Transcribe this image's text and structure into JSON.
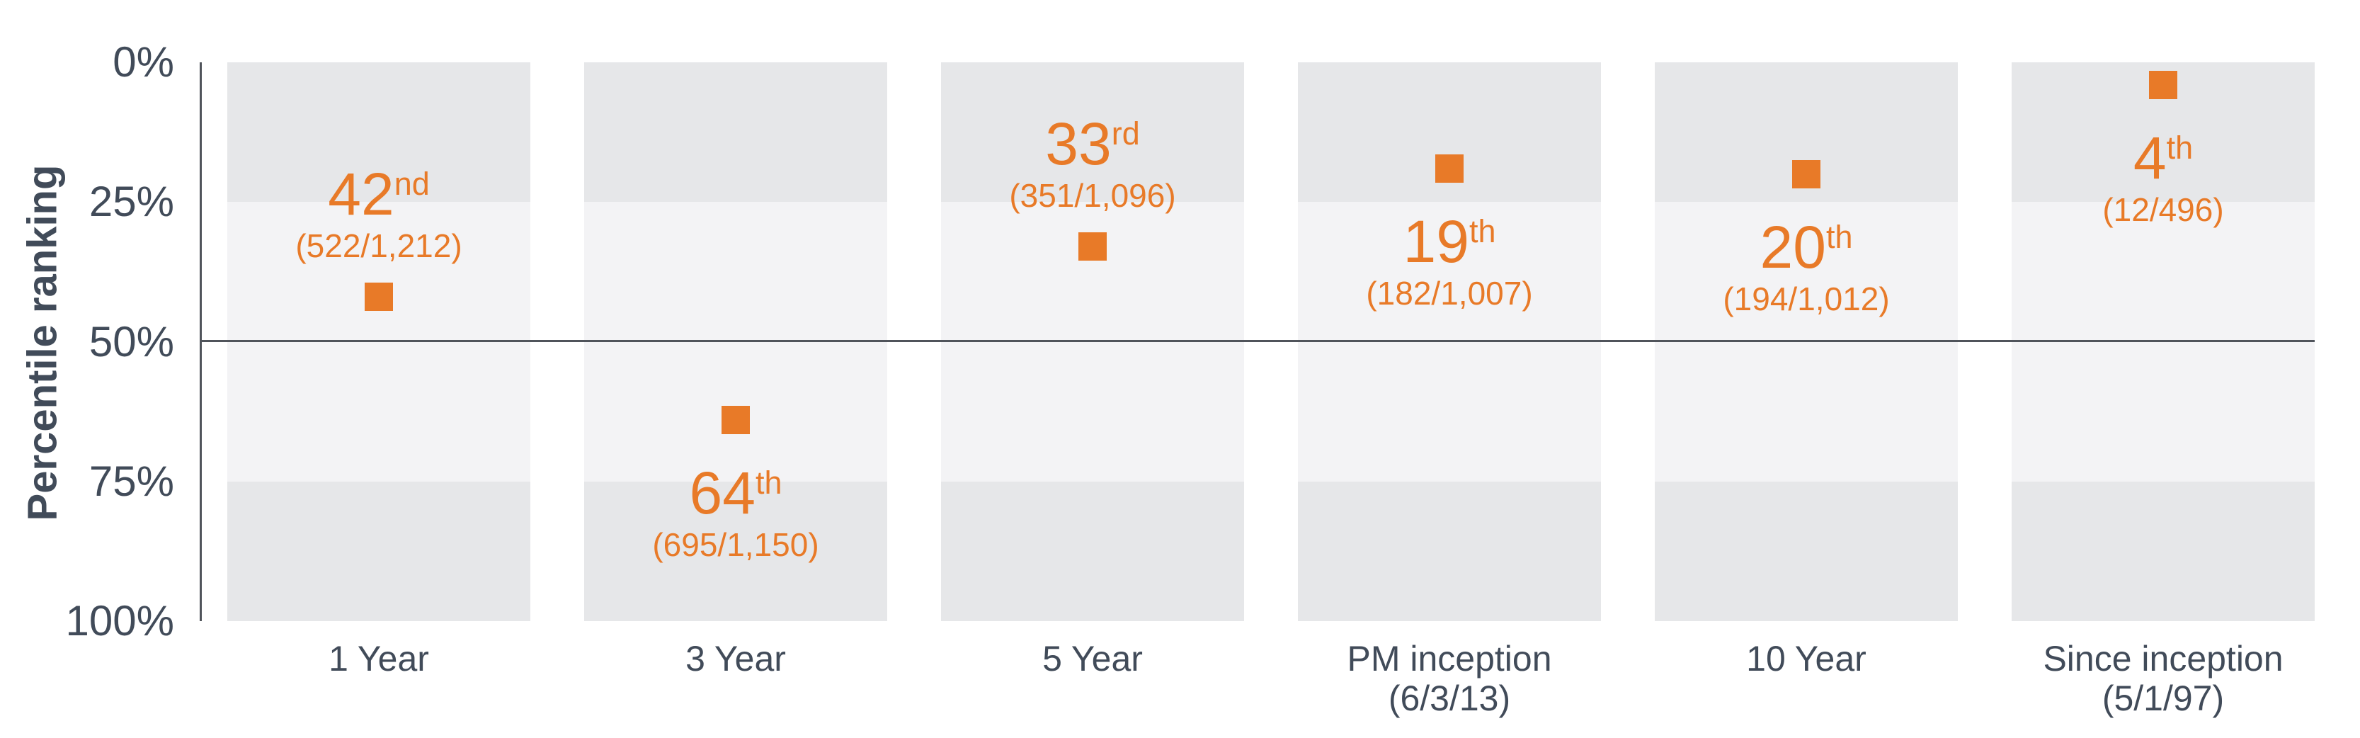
{
  "page": {
    "background": "#FFFFFF"
  },
  "colors": {
    "accent_orange": "#E87A28",
    "text_slate": "#414B59",
    "band_dark": "#E6E7E9",
    "band_light": "#F3F3F5",
    "line_dark": "#50545B"
  },
  "chart_data": {
    "type": "scatter",
    "title": "",
    "ylabel": "Percentile ranking",
    "xlabel": "",
    "y_axis": {
      "min": 0,
      "max": 100,
      "unit": "%",
      "inverted": true,
      "ticks": [
        {
          "label": "0%",
          "value": 0
        },
        {
          "label": "25%",
          "value": 25
        },
        {
          "label": "50%",
          "value": 50
        },
        {
          "label": "75%",
          "value": 75
        },
        {
          "label": "100%",
          "value": 100
        }
      ]
    },
    "reference_line_value": 50,
    "grid": "off",
    "legend": "none",
    "band_pattern": [
      "dark",
      "light",
      "light",
      "dark"
    ],
    "marker_shape": "square",
    "points": [
      {
        "category": "1 Year",
        "category_line2": "",
        "percentile": 42,
        "rank": "42",
        "ordinal": "nd",
        "detail": "(522/1,212)",
        "label_position": "above"
      },
      {
        "category": "3 Year",
        "category_line2": "",
        "percentile": 64,
        "rank": "64",
        "ordinal": "th",
        "detail": "(695/1,150)",
        "label_position": "below"
      },
      {
        "category": "5 Year",
        "category_line2": "",
        "percentile": 33,
        "rank": "33",
        "ordinal": "rd",
        "detail": "(351/1,096)",
        "label_position": "above"
      },
      {
        "category": "PM inception",
        "category_line2": "(6/3/13)",
        "percentile": 19,
        "rank": "19",
        "ordinal": "th",
        "detail": "(182/1,007)",
        "label_position": "below"
      },
      {
        "category": "10 Year",
        "category_line2": "",
        "percentile": 20,
        "rank": "20",
        "ordinal": "th",
        "detail": "(194/1,012)",
        "label_position": "below"
      },
      {
        "category": "Since inception",
        "category_line2": "(5/1/97)",
        "percentile": 4,
        "rank": "4",
        "ordinal": "th",
        "detail": "(12/496)",
        "label_position": "below"
      }
    ]
  }
}
